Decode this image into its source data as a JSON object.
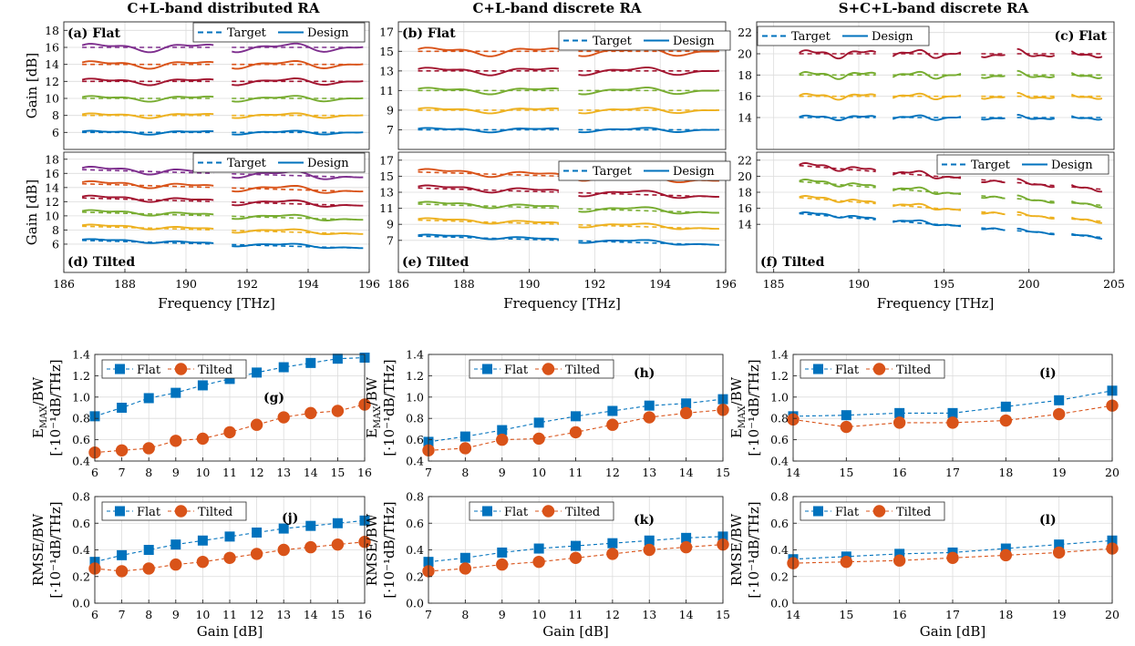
{
  "columns": [
    "C+L-band distributed RA",
    "C+L-band discrete RA",
    "S+C+L-band discrete RA"
  ],
  "legend": {
    "target": "Target",
    "design": "Design",
    "flat": "Flat",
    "tilted": "Tilted"
  },
  "colors": {
    "blue": "#0072BD",
    "orange": "#D95319",
    "yellow": "#EDB120",
    "purple": "#7E2F8E",
    "green": "#77AC30",
    "red": "#A2142F"
  },
  "chart_data": [
    {
      "id": "a",
      "label": "(a) Flat",
      "type": "line",
      "xlim": [
        186,
        196
      ],
      "ylim": [
        4,
        19
      ],
      "yticks": [
        6,
        8,
        10,
        12,
        14,
        16,
        18
      ],
      "xticks": [],
      "ylabel": "Gain [dB]",
      "xlabel": "",
      "segments": [
        [
          186.6,
          190.9
        ],
        [
          191.5,
          195.8
        ]
      ],
      "mode": "flat",
      "targets": [
        6,
        8,
        10,
        12,
        14,
        16
      ],
      "legend_items": [
        "Target",
        "Design"
      ]
    },
    {
      "id": "b",
      "label": "(b) Flat",
      "type": "line",
      "xlim": [
        186,
        196
      ],
      "ylim": [
        5,
        18
      ],
      "yticks": [
        7,
        9,
        11,
        13,
        15,
        17
      ],
      "xticks": [],
      "ylabel": "",
      "xlabel": "",
      "segments": [
        [
          186.6,
          190.9
        ],
        [
          191.5,
          195.8
        ]
      ],
      "mode": "flat",
      "targets": [
        7,
        9,
        11,
        13,
        15
      ],
      "legend_items": [
        "Target",
        "Design"
      ]
    },
    {
      "id": "c",
      "label": "(c) Flat",
      "type": "line",
      "xlim": [
        184,
        205
      ],
      "ylim": [
        11,
        23
      ],
      "yticks": [
        14,
        16,
        18,
        20,
        22
      ],
      "xticks": [],
      "ylabel": "",
      "xlabel": "",
      "segments": [
        [
          186.5,
          191.0
        ],
        [
          192.0,
          196.0
        ],
        [
          197.2,
          198.6
        ],
        [
          199.3,
          201.5
        ],
        [
          202.5,
          204.3
        ]
      ],
      "mode": "flat",
      "targets": [
        14,
        16,
        18,
        20
      ],
      "legend_items": [
        "Target",
        "Design"
      ]
    },
    {
      "id": "d",
      "label": "(d) Tilted",
      "type": "line",
      "xlim": [
        186,
        196
      ],
      "ylim": [
        2,
        19
      ],
      "yticks": [
        6,
        8,
        10,
        12,
        14,
        16,
        18
      ],
      "xticks": [
        186,
        188,
        190,
        192,
        194,
        196
      ],
      "ylabel": "Gain [dB]",
      "xlabel": "Frequency [THz]",
      "segments": [
        [
          186.6,
          190.9
        ],
        [
          191.5,
          195.8
        ]
      ],
      "mode": "tilted",
      "targets": [
        6,
        8,
        10,
        12,
        14,
        16
      ],
      "tilt": 1.2,
      "legend_items": [
        "Target",
        "Design"
      ]
    },
    {
      "id": "e",
      "label": "(e) Tilted",
      "type": "line",
      "xlim": [
        186,
        196
      ],
      "ylim": [
        3,
        18
      ],
      "yticks": [
        7,
        9,
        11,
        13,
        15,
        17
      ],
      "xticks": [
        186,
        188,
        190,
        192,
        194,
        196
      ],
      "ylabel": "",
      "xlabel": "Frequency [THz]",
      "segments": [
        [
          186.6,
          190.9
        ],
        [
          191.5,
          195.8
        ]
      ],
      "mode": "tilted",
      "targets": [
        7,
        9,
        11,
        13,
        15
      ],
      "tilt": 1.2,
      "legend_items": [
        "Target",
        "Design"
      ]
    },
    {
      "id": "f",
      "label": "(f) Tilted",
      "type": "line",
      "xlim": [
        184,
        205
      ],
      "ylim": [
        8,
        23
      ],
      "yticks": [
        14,
        16,
        18,
        20,
        22
      ],
      "xticks": [
        185,
        190,
        195,
        200,
        205
      ],
      "ylabel": "",
      "xlabel": "Frequency [THz]",
      "segments": [
        [
          186.5,
          191.0
        ],
        [
          192.0,
          196.0
        ],
        [
          197.2,
          198.6
        ],
        [
          199.3,
          201.5
        ],
        [
          202.5,
          204.3
        ]
      ],
      "mode": "tilted",
      "targets": [
        14,
        16,
        18,
        20
      ],
      "tilt": 3.5,
      "legend_items": [
        "Target",
        "Design"
      ]
    },
    {
      "id": "g",
      "label": "(g)",
      "type": "line",
      "xlim": [
        6,
        16
      ],
      "ylim": [
        0.4,
        1.4
      ],
      "xticks": [
        6,
        7,
        8,
        9,
        10,
        11,
        12,
        13,
        14,
        15,
        16
      ],
      "yticks": [
        0.4,
        0.6,
        0.8,
        1.0,
        1.2,
        1.4
      ],
      "ylabel_main": "E",
      "ylabel_sub": "MAX",
      "ylabel_tail": "/BW",
      "ylabel_units": "[·10⁻¹dB/THz]",
      "xlabel": "",
      "legend_items": [
        "Flat",
        "Tilted"
      ],
      "x": [
        6,
        7,
        8,
        9,
        10,
        11,
        12,
        13,
        14,
        15,
        16
      ],
      "series": [
        {
          "name": "Flat",
          "values": [
            0.82,
            0.9,
            0.99,
            1.04,
            1.11,
            1.17,
            1.23,
            1.28,
            1.32,
            1.36,
            1.37
          ]
        },
        {
          "name": "Tilted",
          "values": [
            0.48,
            0.5,
            0.52,
            0.59,
            0.61,
            0.67,
            0.74,
            0.81,
            0.85,
            0.87,
            0.93
          ]
        }
      ]
    },
    {
      "id": "h",
      "label": "(h)",
      "type": "line",
      "xlim": [
        7,
        15
      ],
      "ylim": [
        0.4,
        1.4
      ],
      "xticks": [
        7,
        8,
        9,
        10,
        11,
        12,
        13,
        14,
        15
      ],
      "yticks": [
        0.4,
        0.6,
        0.8,
        1.0,
        1.2,
        1.4
      ],
      "ylabel_main": "E",
      "ylabel_sub": "MAX",
      "ylabel_tail": "/BW",
      "ylabel_units": "[·10⁻¹dB/THz]",
      "xlabel": "",
      "legend_items": [
        "Flat",
        "Tilted"
      ],
      "x": [
        7,
        8,
        9,
        10,
        11,
        12,
        13,
        14,
        15
      ],
      "series": [
        {
          "name": "Flat",
          "values": [
            0.58,
            0.63,
            0.69,
            0.76,
            0.82,
            0.87,
            0.92,
            0.94,
            0.98
          ]
        },
        {
          "name": "Tilted",
          "values": [
            0.5,
            0.52,
            0.6,
            0.61,
            0.67,
            0.74,
            0.81,
            0.85,
            0.88
          ]
        }
      ]
    },
    {
      "id": "i",
      "label": "(i)",
      "type": "line",
      "xlim": [
        14,
        20
      ],
      "ylim": [
        0.4,
        1.4
      ],
      "xticks": [
        14,
        15,
        16,
        17,
        18,
        19,
        20
      ],
      "yticks": [
        0.4,
        0.6,
        0.8,
        1.0,
        1.2,
        1.4
      ],
      "ylabel_main": "E",
      "ylabel_sub": "MAX",
      "ylabel_tail": "/BW",
      "ylabel_units": "[·10⁻¹dB/THz]",
      "xlabel": "",
      "legend_items": [
        "Flat",
        "Tilted"
      ],
      "x": [
        14,
        15,
        16,
        17,
        18,
        19,
        20
      ],
      "series": [
        {
          "name": "Flat",
          "values": [
            0.82,
            0.83,
            0.85,
            0.85,
            0.91,
            0.97,
            1.06
          ]
        },
        {
          "name": "Tilted",
          "values": [
            0.79,
            0.72,
            0.76,
            0.76,
            0.78,
            0.84,
            0.92
          ]
        }
      ]
    },
    {
      "id": "j",
      "label": "(j)",
      "type": "line",
      "xlim": [
        6,
        16
      ],
      "ylim": [
        0.0,
        0.8
      ],
      "xticks": [
        6,
        7,
        8,
        9,
        10,
        11,
        12,
        13,
        14,
        15,
        16
      ],
      "yticks": [
        0.0,
        0.2,
        0.4,
        0.6,
        0.8
      ],
      "ylabel_main": "RMSE/BW",
      "ylabel_units": "[·10⁻¹dB/THz]",
      "xlabel": "Gain [dB]",
      "legend_items": [
        "Flat",
        "Tilted"
      ],
      "x": [
        6,
        7,
        8,
        9,
        10,
        11,
        12,
        13,
        14,
        15,
        16
      ],
      "series": [
        {
          "name": "Flat",
          "values": [
            0.31,
            0.36,
            0.4,
            0.44,
            0.47,
            0.5,
            0.53,
            0.56,
            0.58,
            0.6,
            0.62
          ]
        },
        {
          "name": "Tilted",
          "values": [
            0.26,
            0.24,
            0.26,
            0.29,
            0.31,
            0.34,
            0.37,
            0.4,
            0.42,
            0.44,
            0.46
          ]
        }
      ]
    },
    {
      "id": "k",
      "label": "(k)",
      "type": "line",
      "xlim": [
        7,
        15
      ],
      "ylim": [
        0.0,
        0.8
      ],
      "xticks": [
        7,
        8,
        9,
        10,
        11,
        12,
        13,
        14,
        15
      ],
      "yticks": [
        0.0,
        0.2,
        0.4,
        0.6,
        0.8
      ],
      "ylabel_main": "RMSE/BW",
      "ylabel_units": "[·10⁻¹dB/THz]",
      "xlabel": "Gain [dB]",
      "legend_items": [
        "Flat",
        "Tilted"
      ],
      "x": [
        7,
        8,
        9,
        10,
        11,
        12,
        13,
        14,
        15
      ],
      "series": [
        {
          "name": "Flat",
          "values": [
            0.31,
            0.34,
            0.38,
            0.41,
            0.43,
            0.45,
            0.47,
            0.49,
            0.5
          ]
        },
        {
          "name": "Tilted",
          "values": [
            0.24,
            0.26,
            0.29,
            0.31,
            0.34,
            0.37,
            0.4,
            0.42,
            0.44
          ]
        }
      ]
    },
    {
      "id": "l",
      "label": "(l)",
      "type": "line",
      "xlim": [
        14,
        20
      ],
      "ylim": [
        0.0,
        0.8
      ],
      "xticks": [
        14,
        15,
        16,
        17,
        18,
        19,
        20
      ],
      "yticks": [
        0.0,
        0.2,
        0.4,
        0.6,
        0.8
      ],
      "ylabel_main": "RMSE/BW",
      "ylabel_units": "[·10⁻¹dB/THz]",
      "xlabel": "Gain [dB]",
      "legend_items": [
        "Flat",
        "Tilted"
      ],
      "x": [
        14,
        15,
        16,
        17,
        18,
        19,
        20
      ],
      "series": [
        {
          "name": "Flat",
          "values": [
            0.33,
            0.35,
            0.37,
            0.38,
            0.41,
            0.44,
            0.47
          ]
        },
        {
          "name": "Tilted",
          "values": [
            0.3,
            0.31,
            0.32,
            0.34,
            0.36,
            0.38,
            0.41
          ]
        }
      ]
    }
  ]
}
